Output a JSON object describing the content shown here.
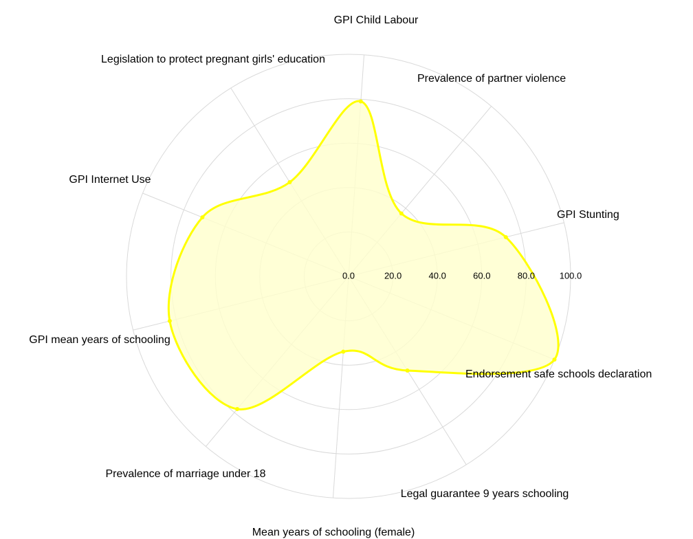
{
  "chart_data": {
    "type": "radar",
    "categories": [
      "GPI Child Labour",
      "Prevalence of partner violence",
      "GPI Stunting",
      "Endorsement safe schools declaration",
      "Legal guarantee 9 years schooling",
      "Mean years of schooling (female)",
      "Prevalence of marriage under 18",
      "GPI mean years of schooling",
      "GPI Internet Use",
      "Legislation to protect pregnant girls' education"
    ],
    "values": [
      79,
      37,
      73,
      100,
      50,
      34,
      78,
      83,
      71,
      50
    ],
    "color": "#ffff00",
    "fill": "#ffffcc",
    "ylim": [
      0,
      100
    ],
    "yticks": [
      {
        "value": 0,
        "label": "0.0"
      },
      {
        "value": 20,
        "label": "20.0"
      },
      {
        "value": 40,
        "label": "40.0"
      },
      {
        "value": 60,
        "label": "60.0"
      },
      {
        "value": 80,
        "label": "80.0"
      },
      {
        "value": 100,
        "label": "100.0"
      }
    ],
    "grid": true
  }
}
